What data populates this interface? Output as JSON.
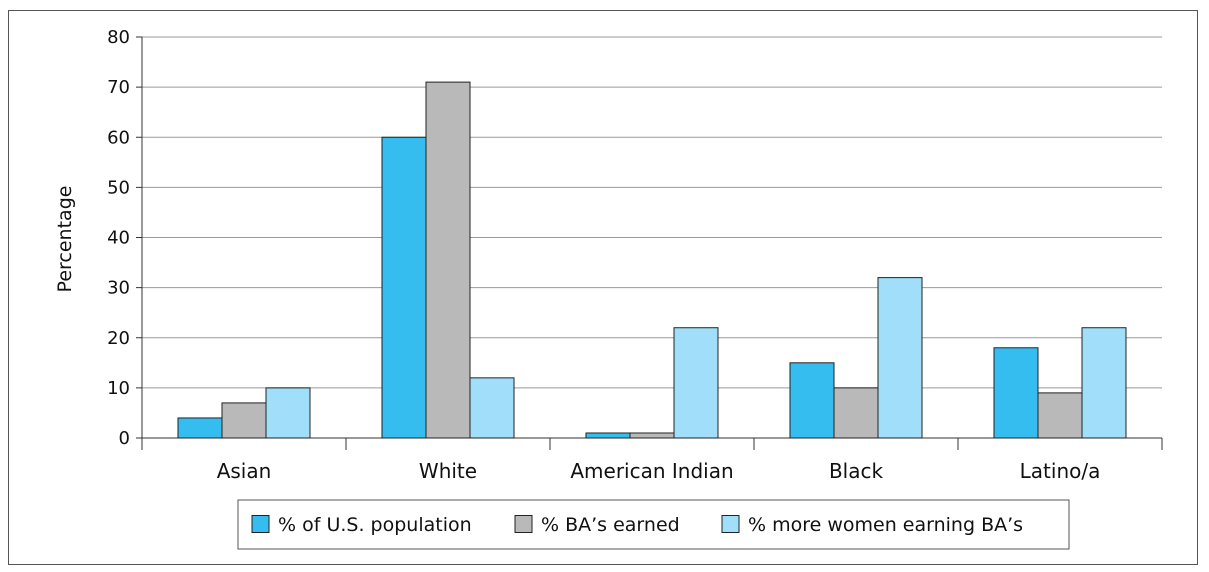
{
  "chart_data": {
    "type": "bar",
    "title": "",
    "xlabel": "",
    "ylabel": "Percentage",
    "ylim": [
      0,
      80
    ],
    "yticks": [
      0,
      10,
      20,
      30,
      40,
      50,
      60,
      70,
      80
    ],
    "grid": true,
    "legend_position": "bottom-center",
    "categories": [
      "Asian",
      "White",
      "American Indian",
      "Black",
      "Latino/a"
    ],
    "series": [
      {
        "name": "% of U.S. population",
        "color": "#35bdf0",
        "values": [
          4,
          60,
          1,
          15,
          18
        ]
      },
      {
        "name": "% BA’s earned",
        "color": "#b9b9b9",
        "values": [
          7,
          71,
          1,
          10,
          9
        ]
      },
      {
        "name": "% more women earning BA’s",
        "color": "#a0defa",
        "values": [
          10,
          12,
          22,
          32,
          22
        ]
      }
    ]
  }
}
